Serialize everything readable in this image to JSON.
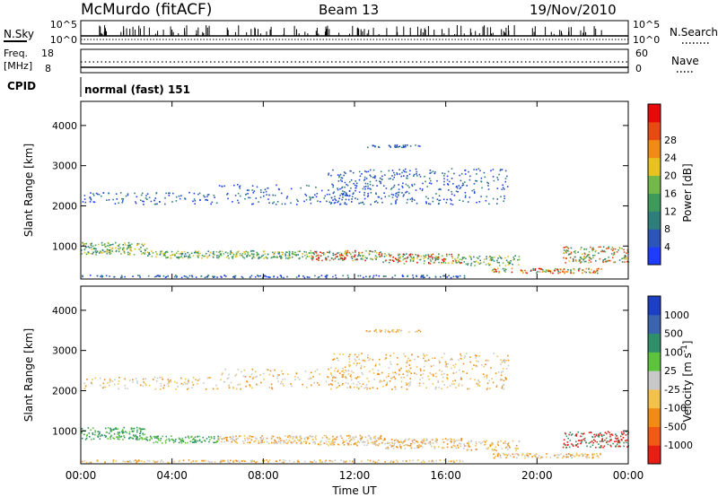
{
  "header": {
    "station": "McMurdo (fitACF)",
    "beam": "Beam 13",
    "date": "19/Nov/2010"
  },
  "noise_panel": {
    "left_label": "N.Sky",
    "right_label": "N.Search",
    "left_ticks": [
      "10^5",
      "10^0"
    ],
    "right_ticks": [
      "10^5",
      "10^0"
    ]
  },
  "freq_panel": {
    "left_label": "Freq.",
    "left_unit": "[MHz]",
    "left_ticks": [
      "18",
      "8"
    ],
    "right_label": "Nave",
    "right_ticks": [
      "60",
      "0"
    ]
  },
  "cpid": {
    "label": "CPID",
    "value": "normal (fast) 151"
  },
  "chart_data": [
    {
      "type": "heatmap",
      "title": "",
      "quantity": "Power",
      "xlabel": "",
      "ylabel": "Slant Range [km]",
      "x_tick_labels": [
        "00:00",
        "04:00",
        "08:00",
        "12:00",
        "16:00",
        "20:00",
        "00:00"
      ],
      "y_tick_labels": [
        "1000",
        "2000",
        "3000",
        "4000"
      ],
      "ylim": [
        180,
        4600
      ],
      "colorbar": {
        "label": "Power [dB]",
        "ticks": [
          "4",
          "8",
          "12",
          "16",
          "20",
          "24",
          "28"
        ],
        "range": [
          0,
          30
        ],
        "colors": [
          "#1e3cff",
          "#2d55b8",
          "#2e7f7c",
          "#3c9a5a",
          "#74b84a",
          "#e8c21e",
          "#f08c14",
          "#e84a14",
          "#e80a0a"
        ]
      }
    },
    {
      "type": "heatmap",
      "title": "",
      "quantity": "Velocity",
      "xlabel": "Time UT",
      "ylabel": "Slant Range [km]",
      "x_tick_labels": [
        "00:00",
        "04:00",
        "08:00",
        "12:00",
        "16:00",
        "20:00",
        "00:00"
      ],
      "y_tick_labels": [
        "1000",
        "2000",
        "3000",
        "4000"
      ],
      "ylim": [
        180,
        4600
      ],
      "colorbar": {
        "label": "Velocity [m s",
        "label_superscript": "-1",
        "label_close": "]",
        "ticks": [
          "1000",
          "500",
          "100",
          "25",
          "-25",
          "-100",
          "-500",
          "-1000"
        ],
        "colors": [
          "#1c3fc4",
          "#3c63b0",
          "#2f8f6a",
          "#5cc43c",
          "#c8c8c8",
          "#f2c24c",
          "#f08c14",
          "#f05a14",
          "#e81e14"
        ]
      }
    }
  ]
}
